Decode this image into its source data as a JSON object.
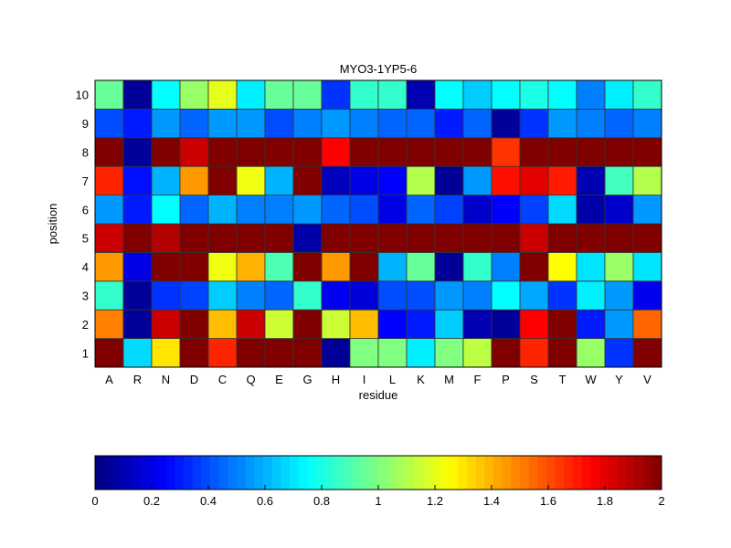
{
  "chart_data": {
    "type": "heatmap",
    "title": "MYO3-1YP5-6",
    "xlabel": "residue",
    "ylabel": "position",
    "x": [
      "A",
      "R",
      "N",
      "D",
      "C",
      "Q",
      "E",
      "G",
      "H",
      "I",
      "L",
      "K",
      "M",
      "F",
      "P",
      "S",
      "T",
      "W",
      "Y",
      "V"
    ],
    "y": [
      "1",
      "2",
      "3",
      "4",
      "5",
      "6",
      "7",
      "8",
      "9",
      "10"
    ],
    "colormap": "jet",
    "clim": [
      0,
      2
    ],
    "colorbar": {
      "placement": "bottom",
      "ticks": [
        "0",
        "0.2",
        "0.4",
        "0.6",
        "0.8",
        "1",
        "1.2",
        "1.4",
        "1.6",
        "1.8",
        "2"
      ]
    },
    "values": [
      [
        2.0,
        0.68,
        1.3,
        2.0,
        1.68,
        2.0,
        2.0,
        2.0,
        0.05,
        1.0,
        1.0,
        0.72,
        1.0,
        1.12,
        2.0,
        1.68,
        2.0,
        1.05,
        0.35,
        2.0
      ],
      [
        1.5,
        0.05,
        1.85,
        2.0,
        1.38,
        1.85,
        1.15,
        2.0,
        1.15,
        1.38,
        0.25,
        0.3,
        0.65,
        0.1,
        0.05,
        1.75,
        2.0,
        0.3,
        0.55,
        1.55
      ],
      [
        0.85,
        0.05,
        0.35,
        0.38,
        0.65,
        0.5,
        0.45,
        0.85,
        0.22,
        0.18,
        0.4,
        0.4,
        0.55,
        0.5,
        0.75,
        0.58,
        0.35,
        0.72,
        0.55,
        0.22
      ],
      [
        1.45,
        0.2,
        2.0,
        2.0,
        1.22,
        1.4,
        0.9,
        2.0,
        1.45,
        2.0,
        0.6,
        0.95,
        0.05,
        0.85,
        0.5,
        2.0,
        1.25,
        0.7,
        1.05,
        0.7
      ],
      [
        1.85,
        2.0,
        1.9,
        2.0,
        2.0,
        2.0,
        2.0,
        0.08,
        2.0,
        2.0,
        2.0,
        2.0,
        2.0,
        2.0,
        2.0,
        1.85,
        2.0,
        2.0,
        2.0,
        2.0
      ],
      [
        0.55,
        0.3,
        0.75,
        0.45,
        0.6,
        0.5,
        0.5,
        0.55,
        0.45,
        0.4,
        0.2,
        0.45,
        0.38,
        0.15,
        0.25,
        0.38,
        0.68,
        0.08,
        0.15,
        0.55
      ],
      [
        1.68,
        0.28,
        0.6,
        1.45,
        2.0,
        1.22,
        0.6,
        2.0,
        0.12,
        0.2,
        0.25,
        1.1,
        0.05,
        0.55,
        1.72,
        1.8,
        1.7,
        0.1,
        0.88,
        1.1
      ],
      [
        2.0,
        0.05,
        2.0,
        1.85,
        2.0,
        2.0,
        2.0,
        2.0,
        1.75,
        2.0,
        2.0,
        2.0,
        2.0,
        2.0,
        1.65,
        2.0,
        2.0,
        2.0,
        2.0,
        2.0
      ],
      [
        0.4,
        0.3,
        0.55,
        0.45,
        0.55,
        0.55,
        0.4,
        0.5,
        0.55,
        0.5,
        0.45,
        0.45,
        0.3,
        0.45,
        0.05,
        0.35,
        0.55,
        0.5,
        0.45,
        0.5
      ],
      [
        0.95,
        0.05,
        0.75,
        1.05,
        1.2,
        0.72,
        0.95,
        0.95,
        0.35,
        0.85,
        0.85,
        0.1,
        0.75,
        0.65,
        0.75,
        0.8,
        0.75,
        0.5,
        0.72,
        0.85
      ]
    ]
  }
}
